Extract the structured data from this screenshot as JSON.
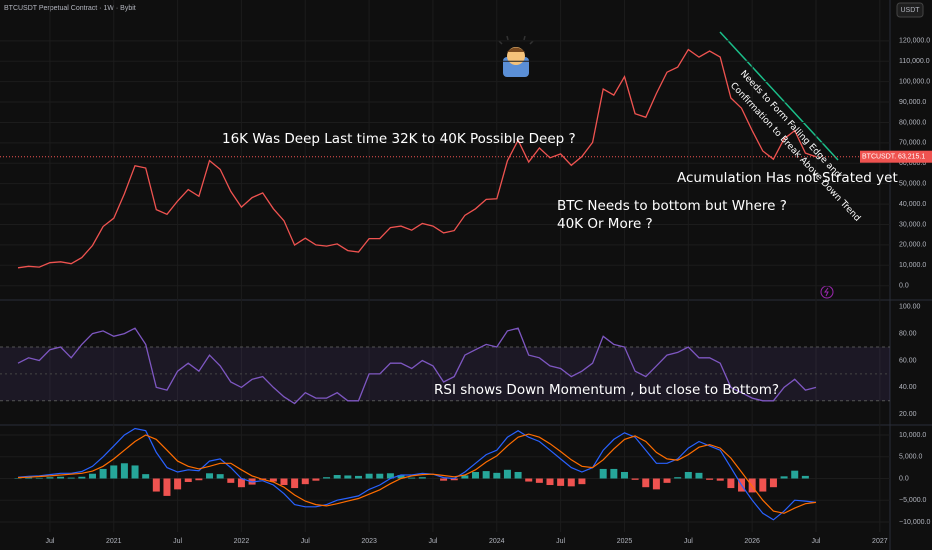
{
  "header": {
    "title": "BTCUSDT Perpetual Contract · 1W · Bybit",
    "currency": "USDT"
  },
  "chart_data": [
    {
      "type": "line",
      "color": "#ef5350",
      "values": [
        8800,
        9500,
        9100,
        11300,
        11700,
        10800,
        13800,
        19700,
        29000,
        33100,
        45100,
        58800,
        57700,
        37300,
        35000,
        41500,
        47100,
        43800,
        61300,
        57000,
        46200,
        38500,
        43200,
        45500,
        37700,
        31800,
        19900,
        23300,
        20000,
        19400,
        20500,
        17200,
        16500,
        23100,
        23100,
        28500,
        29200,
        27200,
        30500,
        29200,
        25900,
        27000,
        34500,
        37700,
        42300,
        42600,
        61200,
        71300,
        60600,
        67500,
        62700,
        64600,
        59000,
        63300,
        70200,
        96400,
        93400,
        102400,
        84300,
        82500,
        94200,
        104600,
        107100,
        115700,
        112000,
        115000,
        112000,
        92000,
        87000,
        76000,
        66000,
        62000,
        72000,
        76000,
        65000,
        63215.1,
        null,
        null,
        null,
        null,
        null,
        null
      ],
      "ylim": [
        -7000,
        140000
      ],
      "yticks": [
        {
          "value": 0,
          "label": "0.0"
        },
        {
          "value": 10000,
          "label": "10,000.0"
        },
        {
          "value": 20000,
          "label": "20,000.0"
        },
        {
          "value": 30000,
          "label": "30,000.0"
        },
        {
          "value": 40000,
          "label": "40,000.0"
        },
        {
          "value": 50000,
          "label": "50,000.0"
        },
        {
          "value": 60000,
          "label": "60,000.0"
        },
        {
          "value": 70000,
          "label": "70,000.0"
        },
        {
          "value": 80000,
          "label": "80,000.0"
        },
        {
          "value": 90000,
          "label": "90,000.0"
        },
        {
          "value": 100000,
          "label": "100,000.0"
        },
        {
          "value": 110000,
          "label": "110,000.0"
        },
        {
          "value": 120000,
          "label": "120,000.0"
        }
      ],
      "grid": true,
      "symbol": "BTCUSDT.P",
      "last_price": {
        "value": 63215.1,
        "label": "63,215.1"
      },
      "annotations": [
        "16K Was Deep Last time 32K to 40K Possible Deep ?",
        "BTC Needs to bottom but  Where ?",
        "40K Or More ?",
        "Acumulation Has not Strated yet",
        "Needs to  Form Falling Edge and",
        "Confirmation to Break  Above Down Trend"
      ]
    },
    {
      "type": "line",
      "color": "#7e57c2",
      "values": [
        58,
        62,
        60,
        68,
        70,
        62,
        72,
        80,
        82,
        78,
        80,
        84,
        72,
        40,
        38,
        52,
        58,
        52,
        64,
        56,
        44,
        40,
        46,
        48,
        40,
        33,
        28,
        36,
        32,
        32,
        36,
        30,
        30,
        50,
        50,
        58,
        58,
        54,
        60,
        56,
        44,
        48,
        64,
        68,
        72,
        70,
        82,
        84,
        64,
        62,
        56,
        54,
        48,
        52,
        58,
        78,
        72,
        70,
        52,
        48,
        56,
        64,
        66,
        70,
        62,
        62,
        58,
        40,
        36,
        32,
        30,
        30,
        40,
        46,
        38,
        40,
        null,
        null,
        null,
        null,
        null,
        null
      ],
      "ylim": [
        12,
        105
      ],
      "yticks": [
        {
          "value": 20,
          "label": "20.00"
        },
        {
          "value": 40,
          "label": "40.00"
        },
        {
          "value": 60,
          "label": "60.00"
        },
        {
          "value": 80,
          "label": "80.00"
        },
        {
          "value": 100,
          "label": "100.00"
        }
      ],
      "band": [
        30,
        70
      ],
      "band_color": "#7e57c2",
      "midline": 50,
      "annotations": [
        "RSI shows Down Momentum , but close to Bottom?"
      ]
    },
    {
      "type": "bar",
      "categories": [
        null,
        null,
        null,
        "Jul",
        null,
        null,
        null,
        null,
        null,
        "2021",
        null,
        null,
        null,
        null,
        null,
        "Jul",
        null,
        null,
        null,
        null,
        null,
        "2022",
        null,
        null,
        null,
        null,
        null,
        "Jul",
        null,
        null,
        null,
        null,
        null,
        "2023",
        null,
        null,
        null,
        null,
        null,
        "Jul",
        null,
        null,
        null,
        null,
        null,
        "2024",
        null,
        null,
        null,
        null,
        null,
        "Jul",
        null,
        null,
        null,
        null,
        null,
        "2025",
        null,
        null,
        null,
        null,
        null,
        "Jul",
        null,
        null,
        null,
        null,
        null,
        "2026",
        null,
        null,
        null,
        null,
        null,
        "Jul",
        null,
        null,
        null,
        null,
        null,
        "2027"
      ],
      "values": [
        100,
        200,
        150,
        300,
        400,
        200,
        400,
        1100,
        2200,
        3000,
        3500,
        3000,
        1000,
        -3000,
        -4000,
        -2500,
        -800,
        -400,
        1200,
        1000,
        -1000,
        -2000,
        -1400,
        -300,
        -700,
        -1500,
        -2200,
        -1300,
        -500,
        300,
        800,
        700,
        600,
        1100,
        1100,
        1200,
        800,
        200,
        300,
        0,
        -500,
        -400,
        700,
        1500,
        1700,
        1300,
        2000,
        1500,
        -700,
        -1000,
        -1500,
        -1700,
        -1800,
        -1300,
        0,
        2200,
        2200,
        1500,
        -300,
        -2000,
        -2500,
        -1000,
        300,
        1500,
        1300,
        -300,
        -500,
        -2200,
        -3000,
        -3200,
        -3000,
        -2000,
        500,
        1800,
        600,
        0,
        null,
        null,
        null,
        null,
        null,
        null
      ],
      "positive_color": "#26a69a",
      "negative_color": "#ef5350",
      "series": [
        {
          "color": "#2962ff",
          "values": [
            300,
            500,
            600,
            900,
            1200,
            1200,
            1600,
            2800,
            5000,
            7500,
            10000,
            11500,
            11000,
            6000,
            2500,
            1500,
            2000,
            1800,
            4000,
            4500,
            2500,
            0,
            -800,
            -500,
            -1500,
            -3500,
            -6000,
            -6500,
            -6500,
            -6000,
            -5000,
            -4500,
            -4000,
            -2500,
            -1500,
            0,
            800,
            800,
            1200,
            1000,
            200,
            0,
            1500,
            3500,
            5500,
            6500,
            9500,
            11000,
            9500,
            8500,
            6500,
            4500,
            2500,
            1500,
            2500,
            6500,
            9000,
            10500,
            9500,
            6500,
            3500,
            3500,
            4500,
            7000,
            8500,
            7500,
            6500,
            2500,
            -1500,
            -5000,
            -8000,
            -9500,
            -7500,
            -5000,
            -5200,
            -5500,
            null,
            null,
            null,
            null,
            null,
            null
          ]
        },
        {
          "color": "#ff6d00",
          "values": [
            200,
            300,
            450,
            600,
            800,
            1000,
            1200,
            1700,
            2800,
            4500,
            6500,
            8500,
            10000,
            9000,
            6500,
            4000,
            2800,
            2200,
            2800,
            3500,
            3500,
            2000,
            600,
            -200,
            -800,
            -2000,
            -3800,
            -5200,
            -6000,
            -6300,
            -5800,
            -5200,
            -4600,
            -3600,
            -2600,
            -1200,
            0,
            600,
            900,
            1000,
            700,
            400,
            800,
            2000,
            3800,
            5200,
            7500,
            9500,
            10200,
            9500,
            8000,
            6200,
            4300,
            2800,
            2500,
            4300,
            6800,
            9000,
            9800,
            8500,
            6000,
            4500,
            4200,
            5500,
            7200,
            7800,
            7000,
            4700,
            1500,
            -1800,
            -5000,
            -7500,
            -8000,
            -6800,
            -5800,
            -5500,
            null,
            null,
            null,
            null,
            null,
            null
          ]
        }
      ],
      "ylim": [
        -12300,
        12300
      ],
      "yticks": [
        {
          "value": -10000,
          "label": "−10,000.0"
        },
        {
          "value": -5000,
          "label": "−5,000.0"
        },
        {
          "value": 0,
          "label": "0.0"
        },
        {
          "value": 5000,
          "label": "5,000.0"
        },
        {
          "value": 10000,
          "label": "10,000.0"
        }
      ],
      "grid": true
    }
  ]
}
